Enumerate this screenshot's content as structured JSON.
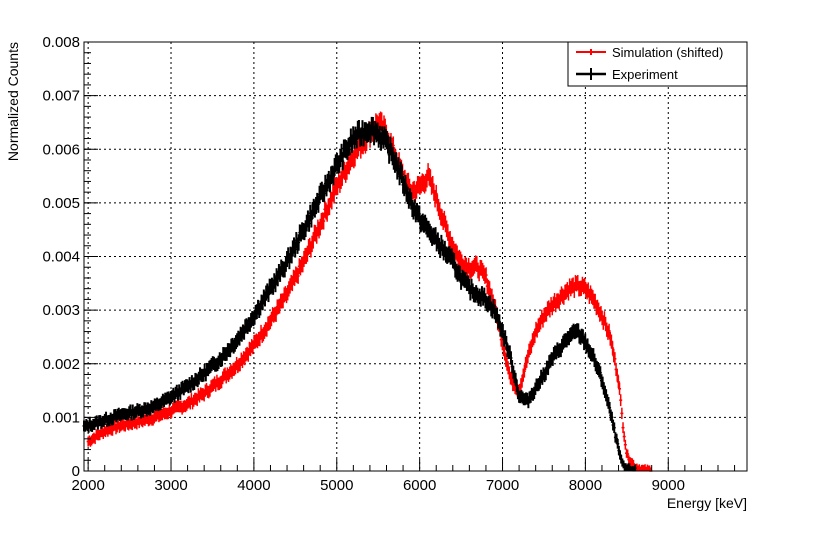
{
  "chart_data": {
    "type": "scatter",
    "title": "",
    "xlabel": "Energy [keV]",
    "ylabel": "Normalized Counts",
    "xlim": [
      1950,
      9950
    ],
    "ylim": [
      0,
      0.008
    ],
    "x_ticks": [
      2000,
      3000,
      4000,
      5000,
      6000,
      7000,
      8000,
      9000
    ],
    "x_tick_labels": [
      "2000",
      "3000",
      "4000",
      "5000",
      "6000",
      "7000",
      "8000",
      "9000"
    ],
    "y_ticks": [
      0,
      0.001,
      0.002,
      0.003,
      0.004,
      0.005,
      0.006,
      0.007,
      0.008
    ],
    "y_tick_labels": [
      "0",
      "0.001",
      "0.002",
      "0.003",
      "0.004",
      "0.005",
      "0.006",
      "0.007",
      "0.008"
    ],
    "grid": true,
    "legend_position": "top-right",
    "series": [
      {
        "name": "Simulation (shifted)",
        "color": "#ff0000",
        "x": [
          2000,
          2200,
          2400,
          2600,
          2800,
          3000,
          3200,
          3400,
          3600,
          3800,
          4000,
          4200,
          4400,
          4600,
          4800,
          5000,
          5200,
          5400,
          5500,
          5600,
          5700,
          5800,
          5900,
          6000,
          6100,
          6200,
          6300,
          6400,
          6500,
          6600,
          6700,
          6800,
          6900,
          7000,
          7100,
          7200,
          7300,
          7400,
          7500,
          7600,
          7700,
          7800,
          7900,
          8000,
          8100,
          8200,
          8300,
          8400,
          8450,
          8500,
          8600,
          8700,
          8800,
          8900,
          9000
        ],
        "y": [
          0.00055,
          0.00075,
          0.00085,
          0.00092,
          0.001,
          0.00112,
          0.00125,
          0.00145,
          0.0017,
          0.00198,
          0.00235,
          0.0028,
          0.0033,
          0.0039,
          0.0046,
          0.0053,
          0.0059,
          0.0063,
          0.0065,
          0.0063,
          0.0059,
          0.0055,
          0.0052,
          0.0053,
          0.0055,
          0.0051,
          0.0046,
          0.0042,
          0.0039,
          0.0038,
          0.0038,
          0.0036,
          0.0031,
          0.0024,
          0.0017,
          0.0015,
          0.0021,
          0.0026,
          0.0029,
          0.0031,
          0.00325,
          0.0034,
          0.00345,
          0.0034,
          0.0032,
          0.0029,
          0.0025,
          0.0017,
          0.0009,
          0.0003,
          8e-05,
          3e-05,
          2e-05,
          1e-05,
          1e-05
        ]
      },
      {
        "name": "Experiment",
        "color": "#000000",
        "x": [
          1950,
          2200,
          2400,
          2600,
          2800,
          3000,
          3200,
          3400,
          3600,
          3800,
          4000,
          4200,
          4400,
          4600,
          4800,
          5000,
          5200,
          5400,
          5500,
          5600,
          5700,
          5800,
          5900,
          6000,
          6100,
          6200,
          6300,
          6400,
          6500,
          6600,
          6700,
          6800,
          6900,
          7000,
          7100,
          7200,
          7300,
          7400,
          7500,
          7600,
          7700,
          7800,
          7900,
          8000,
          8100,
          8200,
          8300,
          8400,
          8450,
          8500,
          8600,
          8700,
          8800,
          8900,
          9000,
          9400
        ],
        "y": [
          0.00082,
          0.00095,
          0.00105,
          0.00112,
          0.0012,
          0.00138,
          0.00158,
          0.00182,
          0.0021,
          0.00245,
          0.0029,
          0.0034,
          0.0039,
          0.0045,
          0.0051,
          0.0057,
          0.0062,
          0.0064,
          0.0063,
          0.0061,
          0.0058,
          0.0054,
          0.005,
          0.0047,
          0.0045,
          0.0043,
          0.0041,
          0.0039,
          0.0036,
          0.0034,
          0.0033,
          0.0032,
          0.003,
          0.0026,
          0.0021,
          0.0014,
          0.0013,
          0.00155,
          0.0018,
          0.0021,
          0.0023,
          0.0025,
          0.0026,
          0.0024,
          0.0021,
          0.0017,
          0.0011,
          0.0004,
          0.0001,
          5e-05,
          2e-05,
          1e-05,
          1e-05,
          1e-05,
          1e-05,
          1e-05
        ]
      }
    ]
  }
}
